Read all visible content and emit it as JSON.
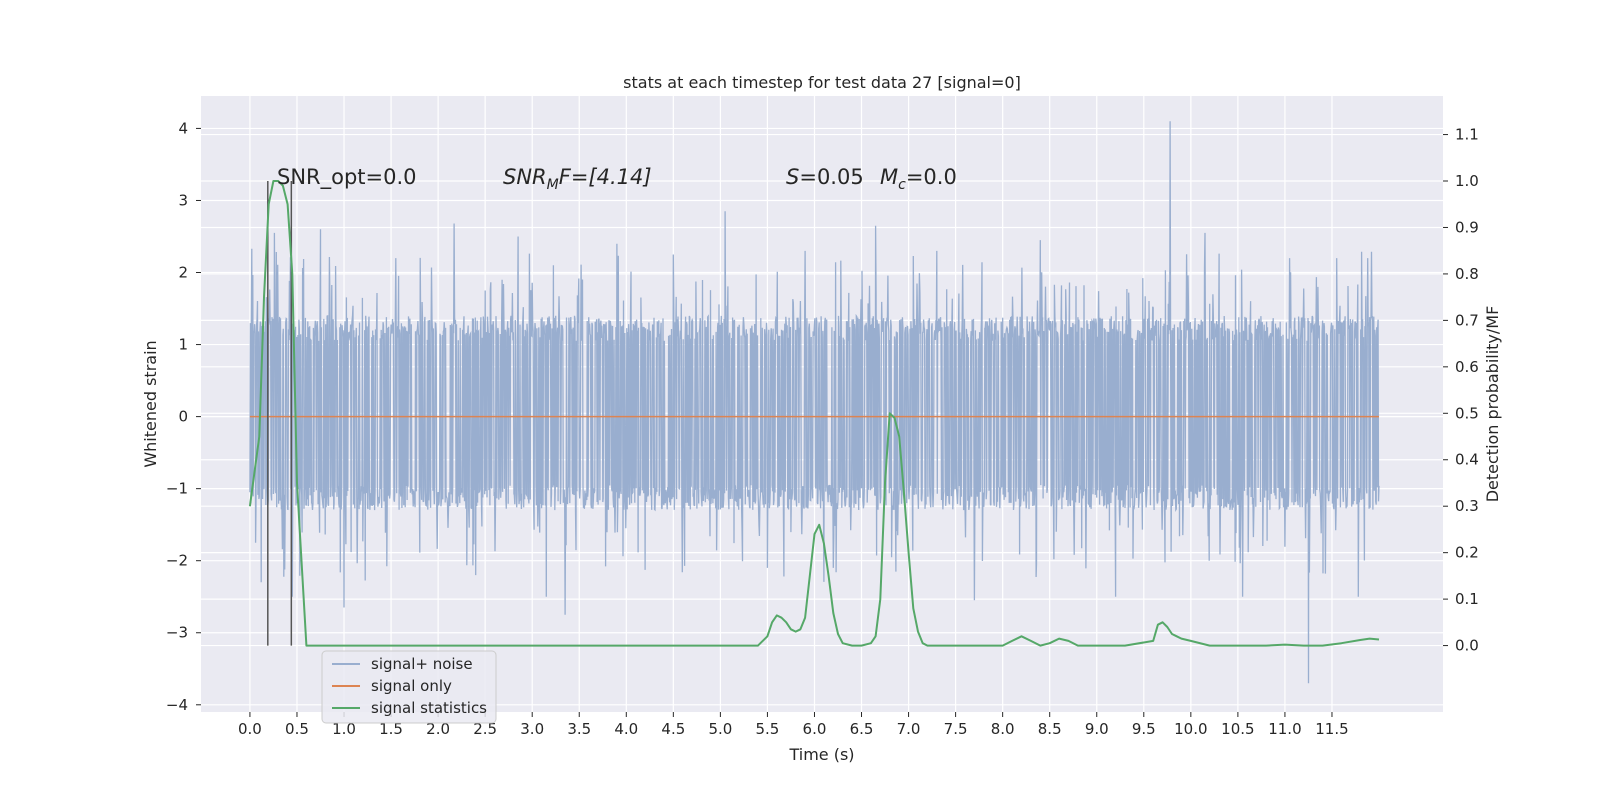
{
  "chart_data": {
    "type": "line",
    "title": "stats at each timestep for test data 27 [signal=0]",
    "xlabel": "Time (s)",
    "ylabel": "Whitened strain",
    "y2label": "Detection probability/MF",
    "xlim": [
      -0.52,
      12.68
    ],
    "ylim": [
      -4.1,
      4.45
    ],
    "y2lim": [
      -0.143,
      1.183
    ],
    "x_ticks": [
      "0.0",
      "0.5",
      "1.0",
      "1.5",
      "2.0",
      "2.5",
      "3.0",
      "3.5",
      "4.0",
      "4.5",
      "5.0",
      "5.5",
      "6.0",
      "6.5",
      "7.0",
      "7.5",
      "8.0",
      "8.5",
      "9.0",
      "9.5",
      "10.0",
      "10.5",
      "11.0",
      "11.5"
    ],
    "y_ticks": [
      "−4",
      "−3",
      "−2",
      "−1",
      "0",
      "1",
      "2",
      "3",
      "4"
    ],
    "y2_ticks": [
      "0.0",
      "0.1",
      "0.2",
      "0.3",
      "0.4",
      "0.5",
      "0.6",
      "0.7",
      "0.8",
      "0.9",
      "1.0",
      "1.1"
    ],
    "grid": true,
    "legend_placement": "lower-left",
    "annotations": {
      "snr_opt": "SNR_opt=0.0",
      "snr_mf_name": "SNR",
      "snr_mf_sub": "M",
      "snr_mf_rest": "F=[4.14]",
      "s_name": "S",
      "s_rest": "=0.05",
      "mc_name": "M",
      "mc_sub": "c",
      "mc_rest": "=0.0"
    },
    "vertical_lines_x": [
      0.19,
      0.44
    ],
    "series": [
      {
        "name": "signal+ noise",
        "color": "#99aecf",
        "axis": "left",
        "duration": 12.0,
        "band_low": -1.3,
        "band_high": 1.4,
        "spikes": [
          {
            "x": 0.02,
            "y": 2.33
          },
          {
            "x": 0.06,
            "y": -1.75
          },
          {
            "x": 0.12,
            "y": -2.3
          },
          {
            "x": 0.26,
            "y": 2.55
          },
          {
            "x": 0.45,
            "y": -2.5
          },
          {
            "x": 0.75,
            "y": 2.6
          },
          {
            "x": 1.0,
            "y": -2.65
          },
          {
            "x": 1.55,
            "y": 2.2
          },
          {
            "x": 2.17,
            "y": 2.68
          },
          {
            "x": 2.4,
            "y": -2.2
          },
          {
            "x": 2.85,
            "y": 2.5
          },
          {
            "x": 3.15,
            "y": -2.5
          },
          {
            "x": 3.35,
            "y": -2.75
          },
          {
            "x": 3.9,
            "y": 2.4
          },
          {
            "x": 4.5,
            "y": 2.25
          },
          {
            "x": 5.05,
            "y": 2.85
          },
          {
            "x": 5.5,
            "y": -2.1
          },
          {
            "x": 5.9,
            "y": 2.3
          },
          {
            "x": 6.2,
            "y": -2.1
          },
          {
            "x": 6.65,
            "y": 2.65
          },
          {
            "x": 7.3,
            "y": 2.3
          },
          {
            "x": 7.7,
            "y": -2.55
          },
          {
            "x": 8.4,
            "y": 2.45
          },
          {
            "x": 9.2,
            "y": -2.5
          },
          {
            "x": 9.78,
            "y": 4.1
          },
          {
            "x": 10.15,
            "y": 2.55
          },
          {
            "x": 10.55,
            "y": -2.5
          },
          {
            "x": 11.05,
            "y": 2.2
          },
          {
            "x": 11.25,
            "y": -3.7
          },
          {
            "x": 11.55,
            "y": 2.2
          },
          {
            "x": 11.78,
            "y": -2.5
          },
          {
            "x": 11.88,
            "y": 2.2
          }
        ]
      },
      {
        "name": "signal only",
        "color": "#dd8452",
        "axis": "left",
        "x": [
          0.0,
          12.0
        ],
        "y": [
          0.0,
          0.0
        ]
      },
      {
        "name": "signal statistics",
        "color": "#55a868",
        "axis": "right",
        "x": [
          0.0,
          0.1,
          0.15,
          0.2,
          0.25,
          0.3,
          0.35,
          0.4,
          0.45,
          0.5,
          0.6,
          1.0,
          2.0,
          3.0,
          4.0,
          5.0,
          5.4,
          5.5,
          5.55,
          5.6,
          5.65,
          5.7,
          5.75,
          5.8,
          5.85,
          5.9,
          6.0,
          6.05,
          6.1,
          6.15,
          6.2,
          6.25,
          6.3,
          6.4,
          6.5,
          6.6,
          6.65,
          6.7,
          6.75,
          6.8,
          6.85,
          6.9,
          6.95,
          7.0,
          7.05,
          7.1,
          7.15,
          7.2,
          7.3,
          7.5,
          7.8,
          8.0,
          8.1,
          8.2,
          8.3,
          8.4,
          8.5,
          8.6,
          8.7,
          8.8,
          8.9,
          9.0,
          9.3,
          9.6,
          9.65,
          9.7,
          9.75,
          9.8,
          9.85,
          9.9,
          10.0,
          10.2,
          10.4,
          10.6,
          10.8,
          11.0,
          11.2,
          11.4,
          11.6,
          11.8,
          11.9,
          12.0
        ],
        "y": [
          0.3,
          0.45,
          0.75,
          0.95,
          1.0,
          1.0,
          0.99,
          0.95,
          0.8,
          0.35,
          0.0,
          0.0,
          0.0,
          0.0,
          0.0,
          0.0,
          0.0,
          0.02,
          0.05,
          0.065,
          0.06,
          0.05,
          0.035,
          0.03,
          0.035,
          0.06,
          0.24,
          0.26,
          0.22,
          0.15,
          0.07,
          0.025,
          0.005,
          0.0,
          0.0,
          0.005,
          0.02,
          0.1,
          0.35,
          0.5,
          0.49,
          0.45,
          0.33,
          0.2,
          0.08,
          0.03,
          0.005,
          0.0,
          0.0,
          0.0,
          0.0,
          0.0,
          0.01,
          0.02,
          0.01,
          0.0,
          0.005,
          0.015,
          0.01,
          0.0,
          0.0,
          0.0,
          0.0,
          0.01,
          0.045,
          0.05,
          0.04,
          0.025,
          0.02,
          0.015,
          0.01,
          0.0,
          0.0,
          0.0,
          0.0,
          0.002,
          0.0,
          0.0,
          0.005,
          0.012,
          0.015,
          0.013
        ]
      }
    ]
  }
}
